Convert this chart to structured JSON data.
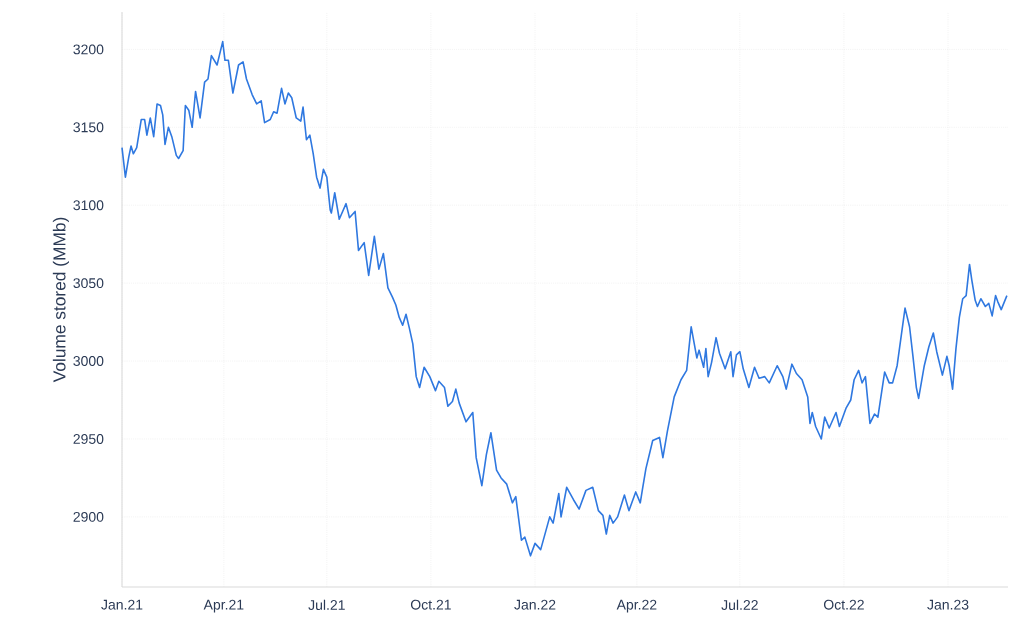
{
  "chart_data": {
    "type": "line",
    "ylabel": "Volume stored (MMb)",
    "grid": true,
    "marker": "none",
    "line_style": "solid",
    "xlim": [
      "2021-01-01",
      "2023-02-23"
    ],
    "ylim": [
      2855,
      3224
    ],
    "xticks": [
      {
        "value": "2021-01-01",
        "label": "Jan.21"
      },
      {
        "value": "2021-04-01",
        "label": "Apr.21"
      },
      {
        "value": "2021-07-01",
        "label": "Jul.21"
      },
      {
        "value": "2021-10-01",
        "label": "Oct.21"
      },
      {
        "value": "2022-01-01",
        "label": "Jan.22"
      },
      {
        "value": "2022-04-01",
        "label": "Apr.22"
      },
      {
        "value": "2022-07-01",
        "label": "Jul.22"
      },
      {
        "value": "2022-10-01",
        "label": "Oct.22"
      },
      {
        "value": "2023-01-01",
        "label": "Jan.23"
      }
    ],
    "yticks": [
      2900,
      2950,
      3000,
      3050,
      3100,
      3150,
      3200
    ],
    "series": [
      {
        "color": "#2f78e0",
        "x": [
          "2021-01-01",
          "2021-01-04",
          "2021-01-07",
          "2021-01-09",
          "2021-01-11",
          "2021-01-14",
          "2021-01-18",
          "2021-01-21",
          "2021-01-23",
          "2021-01-26",
          "2021-01-29",
          "2021-02-01",
          "2021-02-04",
          "2021-02-06",
          "2021-02-08",
          "2021-02-11",
          "2021-02-14",
          "2021-02-18",
          "2021-02-20",
          "2021-02-24",
          "2021-02-26",
          "2021-03-01",
          "2021-03-04",
          "2021-03-07",
          "2021-03-11",
          "2021-03-15",
          "2021-03-18",
          "2021-03-21",
          "2021-03-26",
          "2021-03-28",
          "2021-03-31",
          "2021-04-02",
          "2021-04-05",
          "2021-04-09",
          "2021-04-14",
          "2021-04-18",
          "2021-04-21",
          "2021-04-26",
          "2021-04-30",
          "2021-05-04",
          "2021-05-07",
          "2021-05-12",
          "2021-05-15",
          "2021-05-18",
          "2021-05-22",
          "2021-05-25",
          "2021-05-28",
          "2021-05-31",
          "2021-06-04",
          "2021-06-08",
          "2021-06-10",
          "2021-06-13",
          "2021-06-16",
          "2021-06-19",
          "2021-06-22",
          "2021-06-25",
          "2021-06-28",
          "2021-07-01",
          "2021-07-04",
          "2021-07-05",
          "2021-07-08",
          "2021-07-12",
          "2021-07-18",
          "2021-07-21",
          "2021-07-26",
          "2021-07-29",
          "2021-08-03",
          "2021-08-07",
          "2021-08-12",
          "2021-08-16",
          "2021-08-20",
          "2021-08-24",
          "2021-08-28",
          "2021-08-31",
          "2021-09-03",
          "2021-09-06",
          "2021-09-09",
          "2021-09-12",
          "2021-09-15",
          "2021-09-18",
          "2021-09-21",
          "2021-09-25",
          "2021-09-30",
          "2021-10-05",
          "2021-10-08",
          "2021-10-13",
          "2021-10-16",
          "2021-10-20",
          "2021-10-23",
          "2021-10-26",
          "2021-11-01",
          "2021-11-07",
          "2021-11-10",
          "2021-11-15",
          "2021-11-19",
          "2021-11-23",
          "2021-11-28",
          "2021-12-02",
          "2021-12-07",
          "2021-12-12",
          "2021-12-15",
          "2021-12-20",
          "2021-12-23",
          "2021-12-28",
          "2022-01-01",
          "2022-01-06",
          "2022-01-14",
          "2022-01-17",
          "2022-01-22",
          "2022-01-24",
          "2022-01-29",
          "2022-02-04",
          "2022-02-09",
          "2022-02-15",
          "2022-02-21",
          "2022-02-26",
          "2022-03-02",
          "2022-03-05",
          "2022-03-08",
          "2022-03-11",
          "2022-03-15",
          "2022-03-21",
          "2022-03-25",
          "2022-03-31",
          "2022-04-04",
          "2022-04-06",
          "2022-04-09",
          "2022-04-15",
          "2022-04-21",
          "2022-04-24",
          "2022-04-28",
          "2022-05-04",
          "2022-05-10",
          "2022-05-15",
          "2022-05-19",
          "2022-05-24",
          "2022-05-26",
          "2022-05-30",
          "2022-06-01",
          "2022-06-03",
          "2022-06-06",
          "2022-06-10",
          "2022-06-13",
          "2022-06-18",
          "2022-06-23",
          "2022-06-25",
          "2022-06-28",
          "2022-07-01",
          "2022-07-04",
          "2022-07-09",
          "2022-07-14",
          "2022-07-18",
          "2022-07-23",
          "2022-07-27",
          "2022-08-03",
          "2022-08-08",
          "2022-08-11",
          "2022-08-16",
          "2022-08-20",
          "2022-08-25",
          "2022-08-30",
          "2022-09-01",
          "2022-09-03",
          "2022-09-06",
          "2022-09-11",
          "2022-09-14",
          "2022-09-18",
          "2022-09-24",
          "2022-09-27",
          "2022-10-03",
          "2022-10-07",
          "2022-10-10",
          "2022-10-14",
          "2022-10-17",
          "2022-10-20",
          "2022-10-24",
          "2022-10-28",
          "2022-10-31",
          "2022-11-06",
          "2022-11-10",
          "2022-11-13",
          "2022-11-17",
          "2022-11-24",
          "2022-11-28",
          "2022-12-01",
          "2022-12-04",
          "2022-12-06",
          "2022-12-11",
          "2022-12-15",
          "2022-12-19",
          "2022-12-22",
          "2022-12-27",
          "2022-12-31",
          "2023-01-02",
          "2023-01-05",
          "2023-01-08",
          "2023-01-11",
          "2023-01-14",
          "2023-01-17",
          "2023-01-20",
          "2023-01-22",
          "2023-01-25",
          "2023-01-27",
          "2023-01-30",
          "2023-02-03",
          "2023-02-06",
          "2023-02-09",
          "2023-02-12",
          "2023-02-14",
          "2023-02-17",
          "2023-02-22"
        ],
        "values": [
          3137,
          3118,
          3131,
          3138,
          3133,
          3137,
          3155,
          3155,
          3145,
          3156,
          3144,
          3165,
          3164,
          3158,
          3139,
          3150,
          3144,
          3132,
          3130,
          3135,
          3164,
          3161,
          3150,
          3173,
          3156,
          3179,
          3181,
          3196,
          3190,
          3196,
          3205,
          3193,
          3193,
          3172,
          3190,
          3192,
          3181,
          3171,
          3165,
          3167,
          3153,
          3155,
          3160,
          3159,
          3175,
          3165,
          3172,
          3169,
          3156,
          3154,
          3163,
          3142,
          3145,
          3133,
          3118,
          3111,
          3123,
          3118,
          3097,
          3095,
          3108,
          3091,
          3101,
          3092,
          3096,
          3071,
          3076,
          3055,
          3080,
          3059,
          3069,
          3047,
          3041,
          3036,
          3028,
          3023,
          3030,
          3021,
          3011,
          2990,
          2983,
          2996,
          2990,
          2981,
          2987,
          2983,
          2971,
          2974,
          2982,
          2973,
          2961,
          2967,
          2938,
          2920,
          2940,
          2954,
          2930,
          2925,
          2921,
          2909,
          2913,
          2885,
          2887,
          2875,
          2883,
          2879,
          2900,
          2896,
          2915,
          2900,
          2919,
          2911,
          2905,
          2917,
          2919,
          2904,
          2901,
          2889,
          2901,
          2896,
          2900,
          2914,
          2904,
          2916,
          2909,
          2918,
          2931,
          2949,
          2951,
          2938,
          2955,
          2977,
          2988,
          2994,
          3022,
          3002,
          3007,
          2996,
          3008,
          2990,
          2999,
          3015,
          3005,
          2995,
          3006,
          2990,
          3004,
          3006,
          2995,
          2983,
          2996,
          2989,
          2990,
          2986,
          2997,
          2990,
          2982,
          2998,
          2992,
          2988,
          2977,
          2960,
          2967,
          2958,
          2950,
          2964,
          2957,
          2967,
          2958,
          2970,
          2975,
          2988,
          2994,
          2986,
          2990,
          2960,
          2966,
          2964,
          2993,
          2986,
          2986,
          2997,
          3034,
          3022,
          3003,
          2983,
          2976,
          2997,
          3009,
          3018,
          3006,
          2991,
          3003,
          2997,
          2982,
          3008,
          3028,
          3040,
          3042,
          3062,
          3052,
          3039,
          3035,
          3040,
          3035,
          3037,
          3029,
          3042,
          3038,
          3033,
          3042
        ]
      }
    ]
  }
}
